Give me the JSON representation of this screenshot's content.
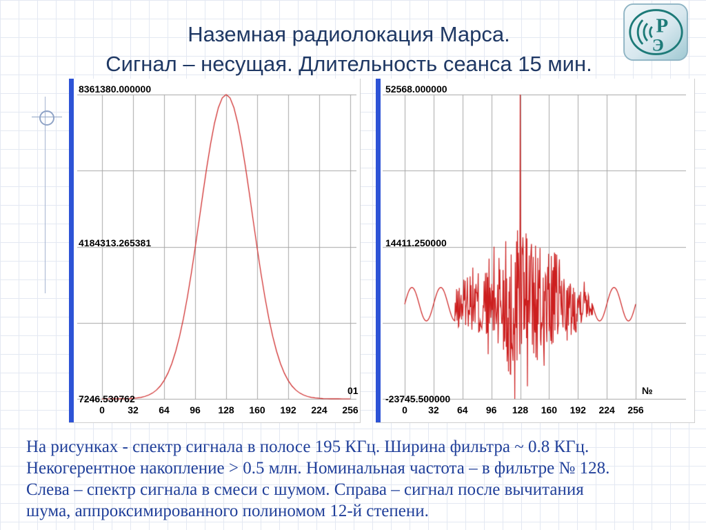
{
  "slide": {
    "title": {
      "line1": "Наземная радиолокация Марса.",
      "line2": "Сигнал – несущая. Длительность сеанса 15 мин."
    },
    "body_lines": [
      "На рисунках - спектр сигнала в полосе 195 КГц. Ширина фильтра ~ 0.8 КГц.",
      "Некогерентное накопление > 0.5 млн. Номинальная частота – в фильтре № 128.",
      "Слева – спектр сигнала в смеси с шумом. Справа – сигнал после вычитания",
      "шума, аппроксимированного полиномом 12-й степени."
    ],
    "logo": {
      "letter_top": "Р",
      "letter_bottom": "Э"
    },
    "colors": {
      "title_text": "#1f3864",
      "body_text": "#21409a",
      "accent_bar": "#2d53d6",
      "curve": "#cc1f1f",
      "logo_teal": "#1d7a78"
    }
  },
  "chart_data": [
    {
      "type": "line",
      "series_color": "#cc1f1f",
      "ylabels": [
        "8361380.000000",
        "4184313.265381",
        "7246.530762"
      ],
      "ylim": [
        7246.530762,
        8361380.0
      ],
      "x_ticks": [
        0,
        32,
        64,
        96,
        128,
        160,
        192,
        224,
        256
      ],
      "xlim": [
        0,
        256
      ],
      "corner_label": "01",
      "grid": true,
      "peak": {
        "x": 128,
        "y": 8361380.0
      },
      "x_step": 4,
      "values": [
        7357,
        7467,
        7676,
        8067,
        8779,
        10050,
        12251,
        16002,
        22259,
        32376,
        48450,
        73303,
        110755,
        166226,
        245590,
        357452,
        510166,
        714842,
        979334,
        1314502,
        1728031,
        2221092,
        2796446,
        3441307,
        4147064,
        4885824,
        5635215,
        6360809,
        7013155,
        7575423,
        8002575,
        8270243,
        8361380,
        8270243,
        8002575,
        7575423,
        7013155,
        6360809,
        5635215,
        4885824,
        4147064,
        3441307,
        2796446,
        2221092,
        1728031,
        1314502,
        979334,
        714842,
        510166,
        357452,
        245590,
        166226,
        110755,
        73303,
        48450,
        32376,
        22259,
        16002,
        12251,
        10050,
        8779,
        8067,
        7676,
        7467,
        7357
      ]
    },
    {
      "type": "line",
      "series_color": "#cc1f1f",
      "ylabels": [
        "52568.000000",
        "14411.250000",
        "-23745.500000"
      ],
      "ylim": [
        -23745.5,
        52568.0
      ],
      "x_ticks": [
        0,
        32,
        64,
        96,
        128,
        160,
        192,
        224,
        256
      ],
      "xlim": [
        0,
        256
      ],
      "corner_label": "№",
      "grid": true,
      "peak": {
        "x": 128,
        "y": 52568.0
      },
      "min_point": {
        "x": 122,
        "y": -23745.5
      },
      "ripple": {
        "center": 0,
        "amplitude": 4200,
        "period_bins": 32
      },
      "noise_region": {
        "x_start": 56,
        "x_end": 208,
        "base_amplitude": 3600,
        "peak_amplitude": 15000,
        "envelope_sigma": 34,
        "seed": 13
      },
      "key_points": [
        {
          "x": 128,
          "y": 52568
        },
        {
          "x": 122,
          "y": -23745.5
        },
        {
          "x": 125,
          "y": 18500
        },
        {
          "x": 131,
          "y": 16800
        },
        {
          "x": 136,
          "y": -20600
        },
        {
          "x": 117,
          "y": -17500
        },
        {
          "x": 140,
          "y": 13500
        },
        {
          "x": 112,
          "y": 15800
        }
      ]
    }
  ]
}
